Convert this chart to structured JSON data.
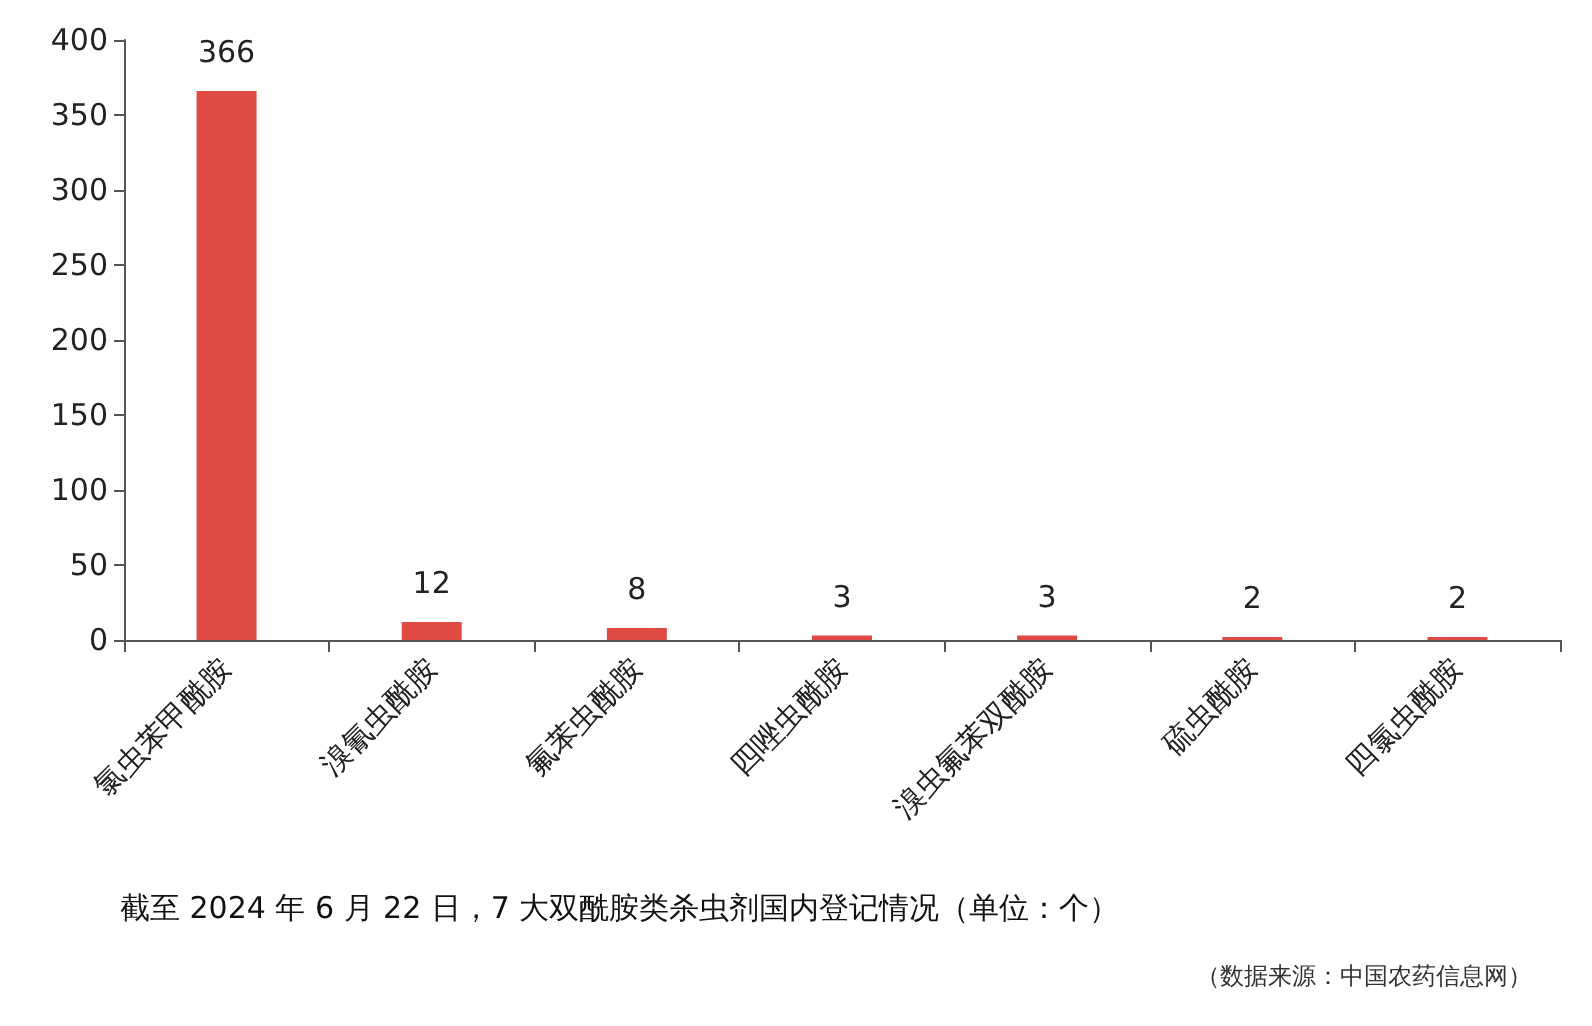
{
  "chart_data": {
    "type": "bar",
    "title": "截至 2024 年 6 月 22 日，7 大双酰胺类杀虫剂国内登记情况（单位：个）",
    "annotations": [
      "（数据来源：中国农药信息网）"
    ],
    "categories": [
      "氯虫苯甲酰胺",
      "溴氰虫酰胺",
      "氟苯虫酰胺",
      "四唑虫酰胺",
      "溴虫氟苯双酰胺",
      "硫虫酰胺",
      "四氯虫酰胺"
    ],
    "values": [
      366,
      12,
      8,
      3,
      3,
      2,
      2
    ],
    "color": "#e04a44",
    "data_labels": true,
    "ylim": [
      0,
      400
    ],
    "yticks": [
      0,
      50,
      100,
      150,
      200,
      250,
      300,
      350,
      400
    ],
    "grid": false
  }
}
